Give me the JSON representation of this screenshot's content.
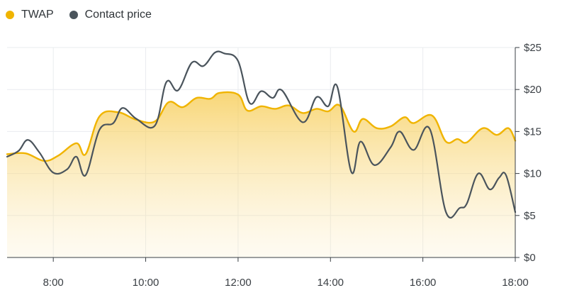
{
  "legend": {
    "twap_label": "TWAP",
    "contact_label": "Contact price"
  },
  "colors": {
    "twap": "#f0b400",
    "contact": "#4a545c",
    "grid": "#e9ecef",
    "axis": "#3a3f44"
  },
  "chart_data": {
    "type": "line",
    "x_unit": "hours",
    "xlim": [
      7,
      18
    ],
    "ylim": [
      0,
      25
    ],
    "x_ticks": [
      {
        "value": 8,
        "label": "8:00"
      },
      {
        "value": 10,
        "label": "10:00"
      },
      {
        "value": 12,
        "label": "12:00"
      },
      {
        "value": 14,
        "label": "14:00"
      },
      {
        "value": 16,
        "label": "16:00"
      },
      {
        "value": 18,
        "label": "18:00"
      }
    ],
    "y_ticks": [
      {
        "value": 0,
        "label": "$0"
      },
      {
        "value": 5,
        "label": "$5"
      },
      {
        "value": 10,
        "label": "$10"
      },
      {
        "value": 15,
        "label": "$15"
      },
      {
        "value": 20,
        "label": "$20"
      },
      {
        "value": 25,
        "label": "$25"
      }
    ],
    "grid": true,
    "legend_position": "top-left",
    "series": [
      {
        "name": "TWAP",
        "area": true,
        "points": [
          [
            7,
            12.3
          ],
          [
            7.4,
            12.4
          ],
          [
            7.8,
            11.5
          ],
          [
            8.1,
            12.1
          ],
          [
            8.5,
            13.6
          ],
          [
            8.7,
            12.3
          ],
          [
            9.0,
            16.8
          ],
          [
            9.4,
            17.3
          ],
          [
            9.8,
            16.4
          ],
          [
            10.2,
            16.2
          ],
          [
            10.5,
            18.5
          ],
          [
            10.8,
            17.9
          ],
          [
            11.1,
            19.0
          ],
          [
            11.4,
            18.9
          ],
          [
            11.6,
            19.6
          ],
          [
            12.0,
            19.4
          ],
          [
            12.2,
            17.5
          ],
          [
            12.5,
            18.0
          ],
          [
            12.8,
            17.7
          ],
          [
            13.1,
            18.1
          ],
          [
            13.4,
            17.2
          ],
          [
            13.7,
            17.7
          ],
          [
            13.95,
            17.4
          ],
          [
            14.2,
            18.1
          ],
          [
            14.5,
            15.0
          ],
          [
            14.7,
            16.5
          ],
          [
            15.0,
            15.4
          ],
          [
            15.3,
            15.6
          ],
          [
            15.6,
            16.7
          ],
          [
            15.8,
            16.0
          ],
          [
            16.2,
            16.9
          ],
          [
            16.5,
            13.8
          ],
          [
            16.75,
            14.1
          ],
          [
            16.95,
            13.7
          ],
          [
            17.3,
            15.4
          ],
          [
            17.6,
            14.6
          ],
          [
            17.85,
            15.4
          ],
          [
            18,
            13.9
          ]
        ]
      },
      {
        "name": "Contact price",
        "area": false,
        "points": [
          [
            7,
            12.0
          ],
          [
            7.25,
            12.7
          ],
          [
            7.45,
            14.0
          ],
          [
            7.7,
            12.5
          ],
          [
            8.0,
            10.1
          ],
          [
            8.3,
            10.5
          ],
          [
            8.5,
            12.0
          ],
          [
            8.7,
            9.8
          ],
          [
            9.0,
            15.2
          ],
          [
            9.3,
            16.0
          ],
          [
            9.5,
            17.8
          ],
          [
            9.8,
            16.5
          ],
          [
            10.2,
            15.7
          ],
          [
            10.45,
            20.9
          ],
          [
            10.7,
            19.9
          ],
          [
            11.0,
            23.2
          ],
          [
            11.25,
            22.8
          ],
          [
            11.5,
            24.4
          ],
          [
            11.7,
            24.3
          ],
          [
            12.0,
            23.4
          ],
          [
            12.25,
            18.4
          ],
          [
            12.5,
            19.8
          ],
          [
            12.75,
            19.0
          ],
          [
            12.95,
            19.9
          ],
          [
            13.4,
            16.1
          ],
          [
            13.7,
            19.1
          ],
          [
            13.95,
            18.0
          ],
          [
            14.15,
            20.3
          ],
          [
            14.45,
            10.2
          ],
          [
            14.65,
            13.8
          ],
          [
            14.95,
            11.0
          ],
          [
            15.3,
            13.1
          ],
          [
            15.5,
            15.0
          ],
          [
            15.8,
            12.8
          ],
          [
            16.15,
            15.3
          ],
          [
            16.5,
            5.4
          ],
          [
            16.8,
            5.9
          ],
          [
            16.95,
            6.4
          ],
          [
            17.2,
            10.0
          ],
          [
            17.45,
            8.1
          ],
          [
            17.65,
            9.5
          ],
          [
            17.8,
            9.8
          ],
          [
            18,
            5.4
          ]
        ]
      }
    ]
  }
}
